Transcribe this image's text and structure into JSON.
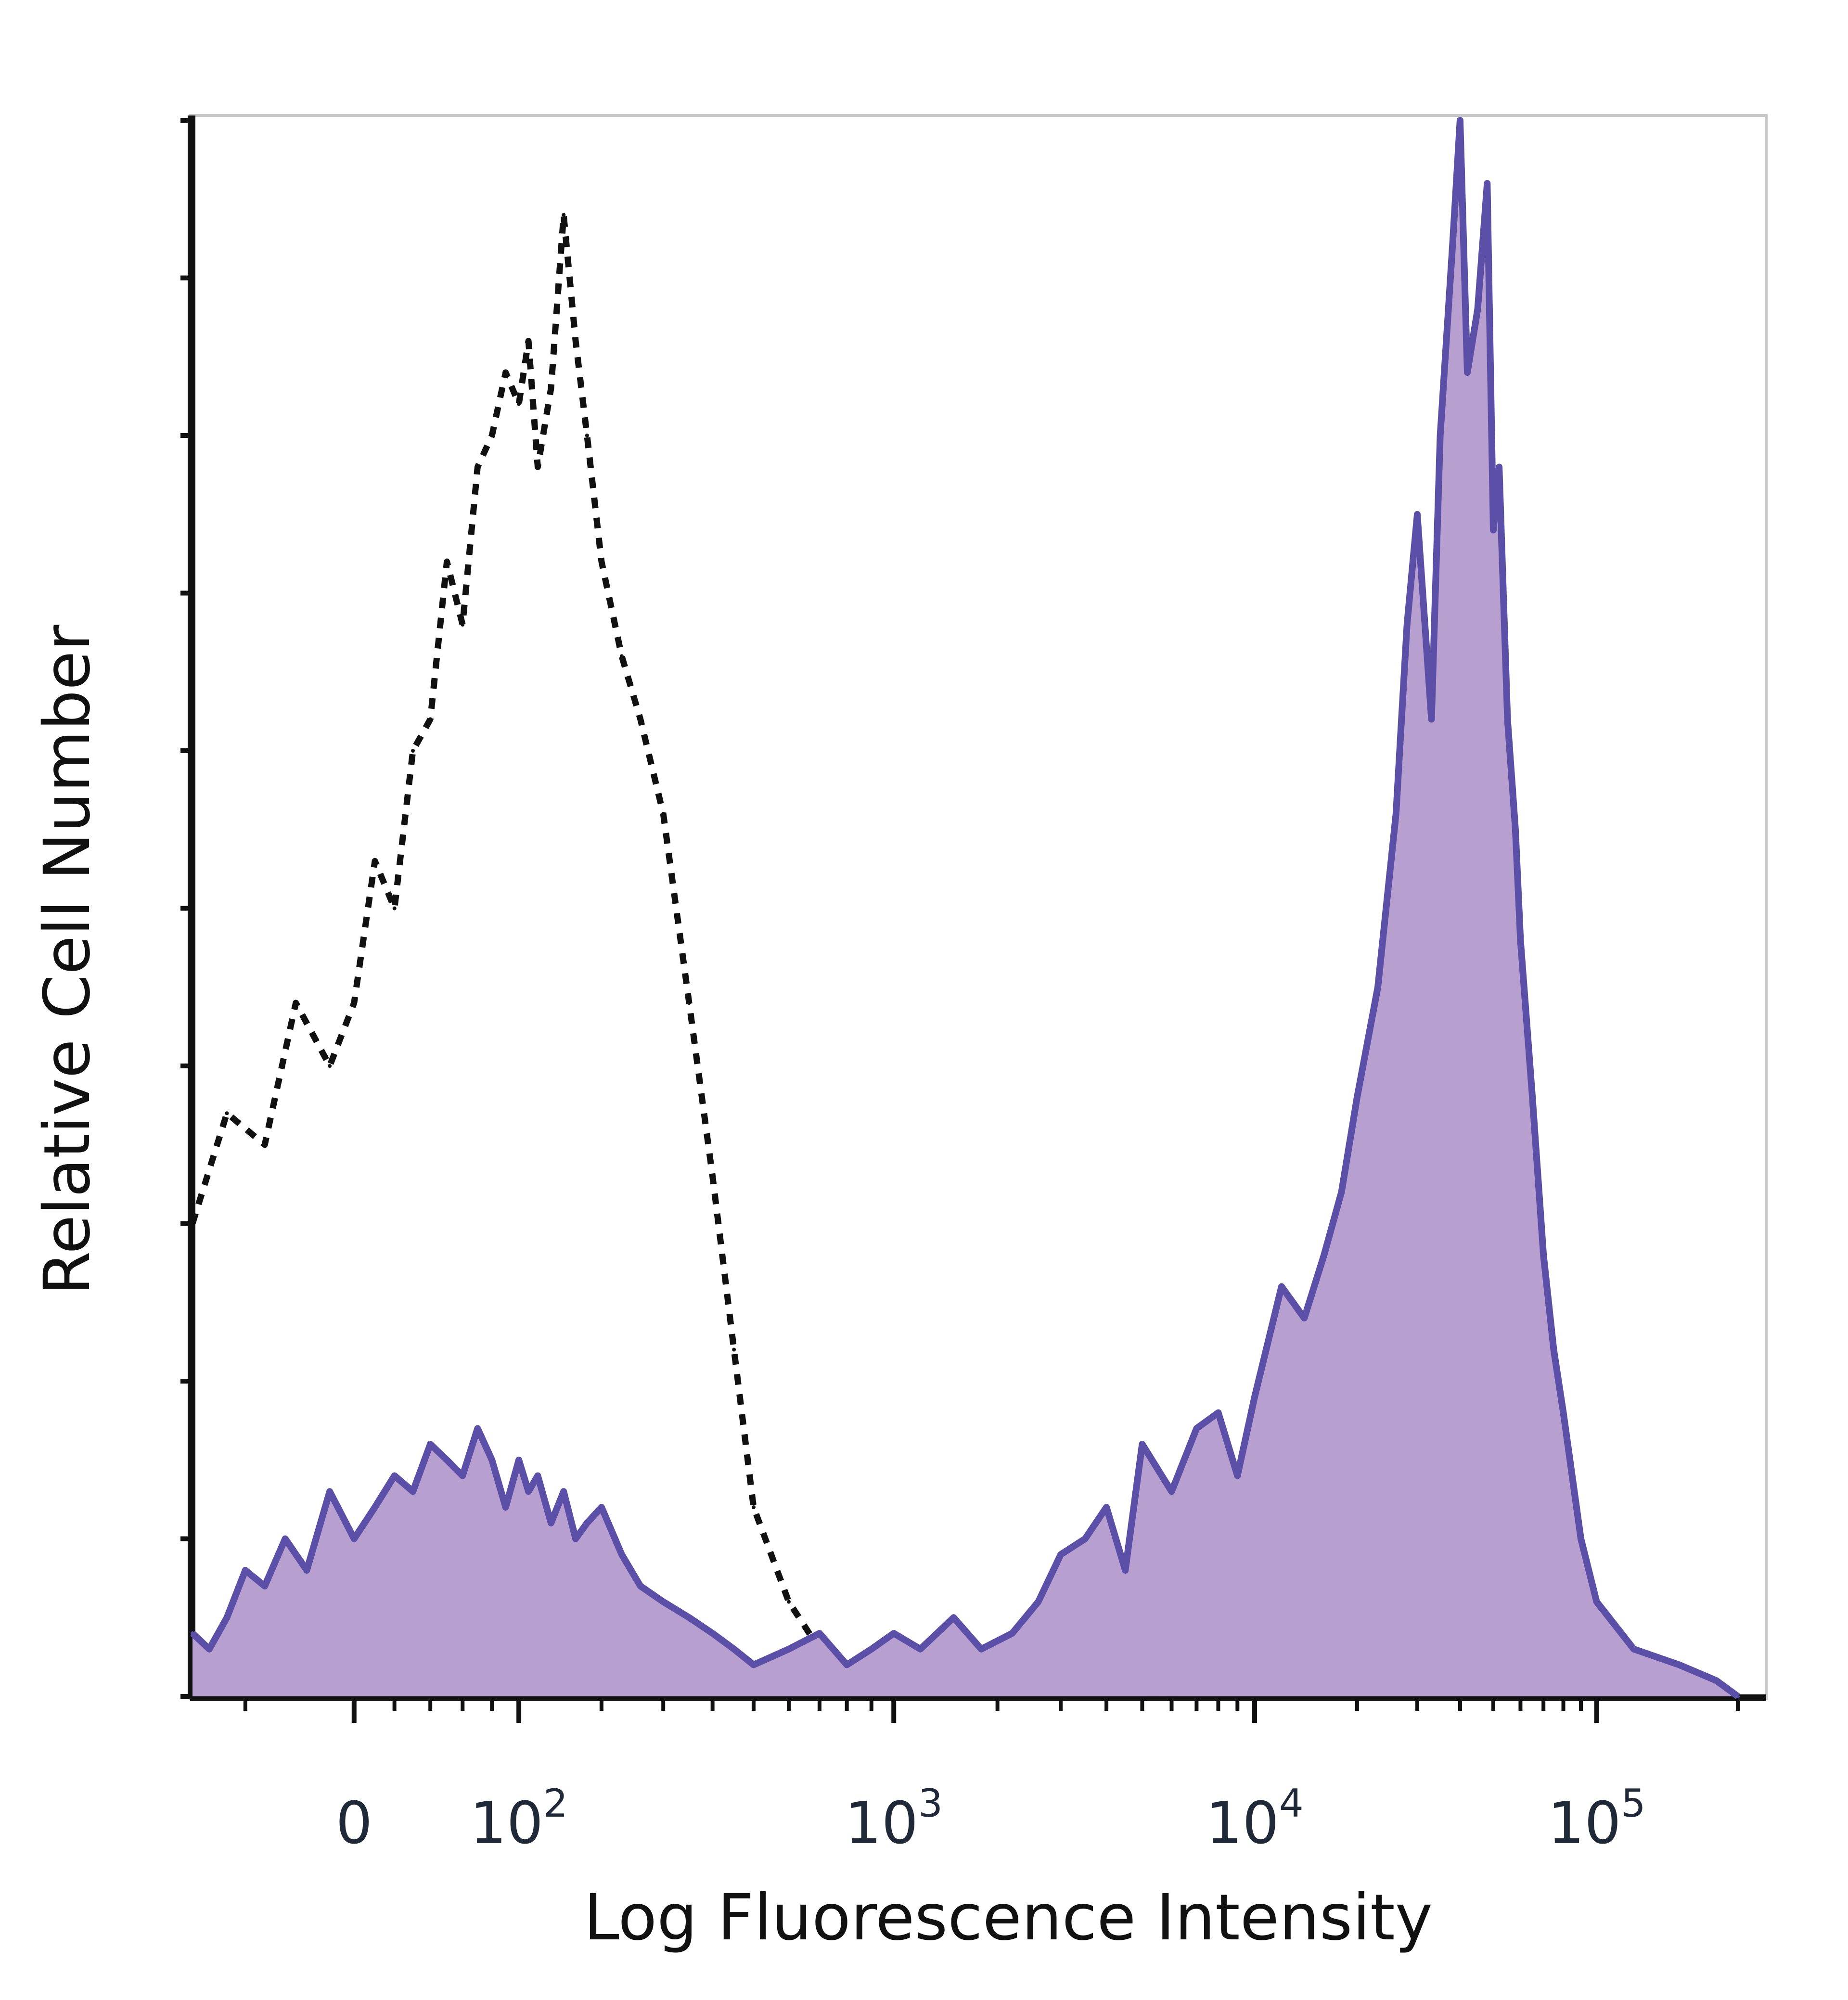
{
  "chart_data": {
    "type": "area",
    "title": "",
    "xlabel": "Log Fluorescence Intensity",
    "ylabel": "Relative Cell Number",
    "x_scale": "biexponential (log with linear region around 0)",
    "xlim": [
      -80,
      200000
    ],
    "ylim": [
      0,
      100
    ],
    "grid": false,
    "legend": "none",
    "x_ticks": [
      {
        "value": 0,
        "label": "0"
      },
      {
        "value": 100,
        "label": "10",
        "exp": "2"
      },
      {
        "value": 1000,
        "label": "10",
        "exp": "3"
      },
      {
        "value": 10000,
        "label": "10",
        "exp": "4"
      },
      {
        "value": 100000,
        "label": "10",
        "exp": "5"
      }
    ],
    "series": [
      {
        "style": "dotted black outline (unfilled)",
        "color": "#111111",
        "x": [
          -80,
          -60,
          -40,
          -25,
          -10,
          0,
          10,
          20,
          30,
          40,
          50,
          60,
          70,
          80,
          90,
          100,
          110,
          120,
          135,
          150,
          165,
          180,
          200,
          230,
          260,
          300,
          350,
          400,
          450,
          500,
          600,
          700,
          800,
          1000,
          1500,
          2000,
          3000,
          5000,
          10000,
          50000,
          200000
        ],
        "y": [
          30,
          37,
          35,
          44,
          40,
          44,
          53,
          50,
          60,
          62,
          72,
          68,
          78,
          80,
          84,
          82,
          86,
          78,
          83,
          94,
          86,
          80,
          72,
          66,
          62,
          56,
          44,
          33,
          22,
          12,
          6,
          3,
          2,
          1,
          1,
          0.5,
          0.3,
          0.2,
          0.1,
          0.1,
          0
        ]
      },
      {
        "style": "purple outline, lavender filled",
        "color": "#5b4fa8",
        "fill": "#b79fcf",
        "x": [
          -80,
          -70,
          -60,
          -50,
          -40,
          -30,
          -20,
          -10,
          0,
          10,
          20,
          30,
          40,
          50,
          60,
          70,
          80,
          90,
          100,
          110,
          120,
          135,
          150,
          165,
          180,
          200,
          230,
          260,
          300,
          350,
          400,
          450,
          500,
          600,
          700,
          800,
          900,
          1000,
          1200,
          1500,
          1800,
          2200,
          2600,
          3000,
          3500,
          4000,
          4500,
          5000,
          6000,
          7000,
          8000,
          9000,
          10000,
          12000,
          14000,
          16000,
          18000,
          20000,
          23000,
          26000,
          28000,
          30000,
          33000,
          35000,
          38000,
          40000,
          42000,
          45000,
          48000,
          50000,
          52000,
          55000,
          58000,
          60000,
          65000,
          70000,
          75000,
          80000,
          90000,
          100000,
          120000,
          150000,
          180000,
          200000
        ],
        "y": [
          4,
          3,
          5,
          8,
          7,
          10,
          8,
          13,
          10,
          12,
          14,
          13,
          16,
          15,
          14,
          17,
          15,
          12,
          15,
          13,
          14,
          11,
          13,
          10,
          11,
          12,
          9,
          7,
          6,
          5,
          4,
          3,
          2,
          3,
          4,
          2,
          3,
          4,
          3,
          5,
          3,
          4,
          6,
          9,
          10,
          12,
          8,
          16,
          13,
          17,
          18,
          14,
          19,
          26,
          24,
          28,
          32,
          38,
          45,
          56,
          68,
          75,
          62,
          80,
          92,
          100,
          84,
          88,
          96,
          74,
          78,
          62,
          55,
          48,
          38,
          28,
          22,
          18,
          10,
          6,
          3,
          2,
          1,
          0
        ]
      }
    ]
  }
}
